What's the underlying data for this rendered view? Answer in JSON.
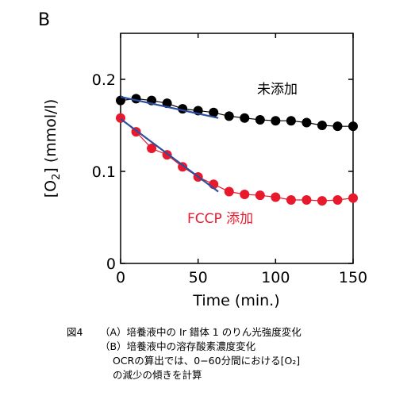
{
  "panel_label": "B",
  "chart_data": {
    "type": "scatter",
    "xlabel": "Time (min.)",
    "ylabel": "[O2] (mmol/l)",
    "xlim": [
      0,
      150
    ],
    "ylim": [
      0,
      0.25
    ],
    "x_ticks": [
      "0",
      "50",
      "100",
      "150"
    ],
    "y_ticks": [
      "0",
      "0.1",
      "0.2"
    ],
    "grid": false,
    "series": [
      {
        "name": "未添加",
        "color": "#000000",
        "x": [
          0,
          10,
          20,
          30,
          40,
          50,
          60,
          70,
          80,
          90,
          100,
          110,
          120,
          130,
          140,
          150
        ],
        "y": [
          0.177,
          0.179,
          0.177,
          0.174,
          0.168,
          0.166,
          0.164,
          0.16,
          0.158,
          0.156,
          0.155,
          0.155,
          0.153,
          0.15,
          0.149,
          0.149
        ],
        "fit": {
          "x": [
            0,
            63
          ],
          "y": [
            0.181,
            0.158
          ],
          "color": "#2b4ea0"
        }
      },
      {
        "name": "FCCP 添加",
        "color": "#e8192c",
        "x": [
          0,
          10,
          20,
          30,
          40,
          50,
          60,
          70,
          80,
          90,
          100,
          110,
          120,
          130,
          140,
          150
        ],
        "y": [
          0.158,
          0.143,
          0.125,
          0.118,
          0.105,
          0.094,
          0.086,
          0.078,
          0.075,
          0.074,
          0.072,
          0.069,
          0.069,
          0.068,
          0.069,
          0.071
        ],
        "fit": {
          "x": [
            0,
            63
          ],
          "y": [
            0.157,
            0.078
          ],
          "color": "#2b4ea0"
        }
      }
    ]
  },
  "caption": {
    "fig_label": "図4",
    "lines": [
      "（A）培養液中の Ir 錯体 1 のりん光強度変化",
      "（B）培養液中の溶存酸素濃度変化",
      "OCRの算出では、0−60分間における[O₂]",
      "の減少の傾きを計算"
    ]
  }
}
